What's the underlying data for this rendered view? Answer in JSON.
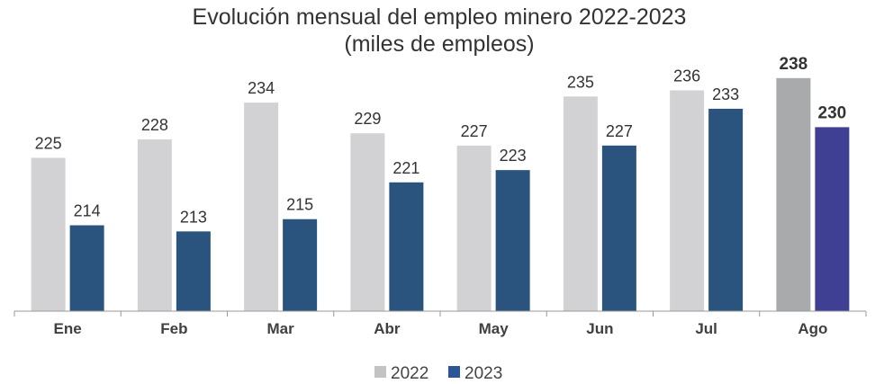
{
  "chart_data": {
    "type": "bar",
    "title": "Evolución mensual del empleo minero 2022-2023",
    "subtitle": "(miles de empleos)",
    "xlabel": "",
    "ylabel": "",
    "ylim": [
      200,
      240
    ],
    "grid": false,
    "legend_position": "bottom",
    "categories": [
      "Ene",
      "Feb",
      "Mar",
      "Abr",
      "May",
      "Jun",
      "Jul",
      "Ago"
    ],
    "series": [
      {
        "name": "2022",
        "color": "#d2d2d4",
        "highlight_color": "#a9aaac",
        "values": [
          225,
          228,
          234,
          229,
          227,
          235,
          236,
          238
        ]
      },
      {
        "name": "2023",
        "color": "#2a547e",
        "highlight_color": "#3f3f93",
        "values": [
          214,
          213,
          215,
          221,
          223,
          227,
          233,
          230
        ]
      }
    ],
    "highlighted_category": "Ago",
    "legend_colors": [
      "#c4c2c2",
      "#2a5597"
    ]
  }
}
